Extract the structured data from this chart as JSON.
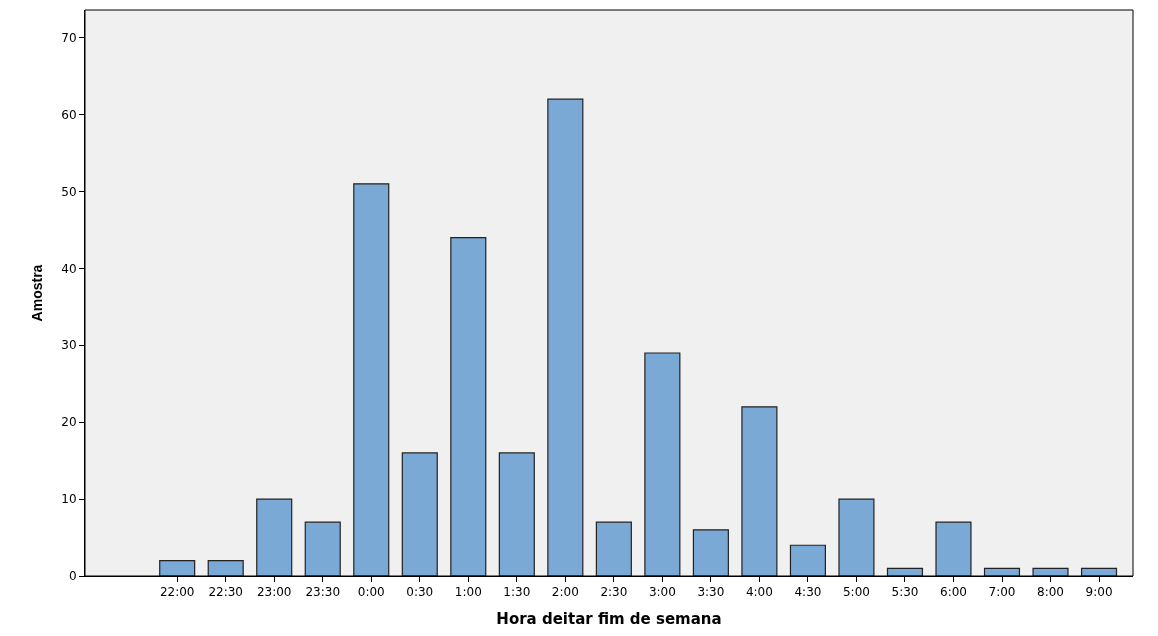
{
  "chart_data": {
    "type": "bar",
    "xlabel": "Hora deitar fim de semana",
    "ylabel": "Amostra",
    "categories": [
      "22:00",
      "22:30",
      "23:00",
      "23:30",
      "0:00",
      "0:30",
      "1:00",
      "1:30",
      "2:00",
      "2:30",
      "3:00",
      "3:30",
      "4:00",
      "4:30",
      "5:00",
      "5:30",
      "6:00",
      "7:00",
      "8:00",
      "9:00"
    ],
    "values": [
      2,
      2,
      10,
      7,
      51,
      16,
      44,
      16,
      62,
      7,
      29,
      6,
      22,
      4,
      10,
      1,
      7,
      1,
      1,
      1
    ],
    "color": "#7aa9d6",
    "ylim": [
      0,
      73.6
    ],
    "yticks": [
      0,
      10,
      20,
      30,
      40,
      50,
      60,
      70
    ],
    "grid": false,
    "legend": false
  }
}
